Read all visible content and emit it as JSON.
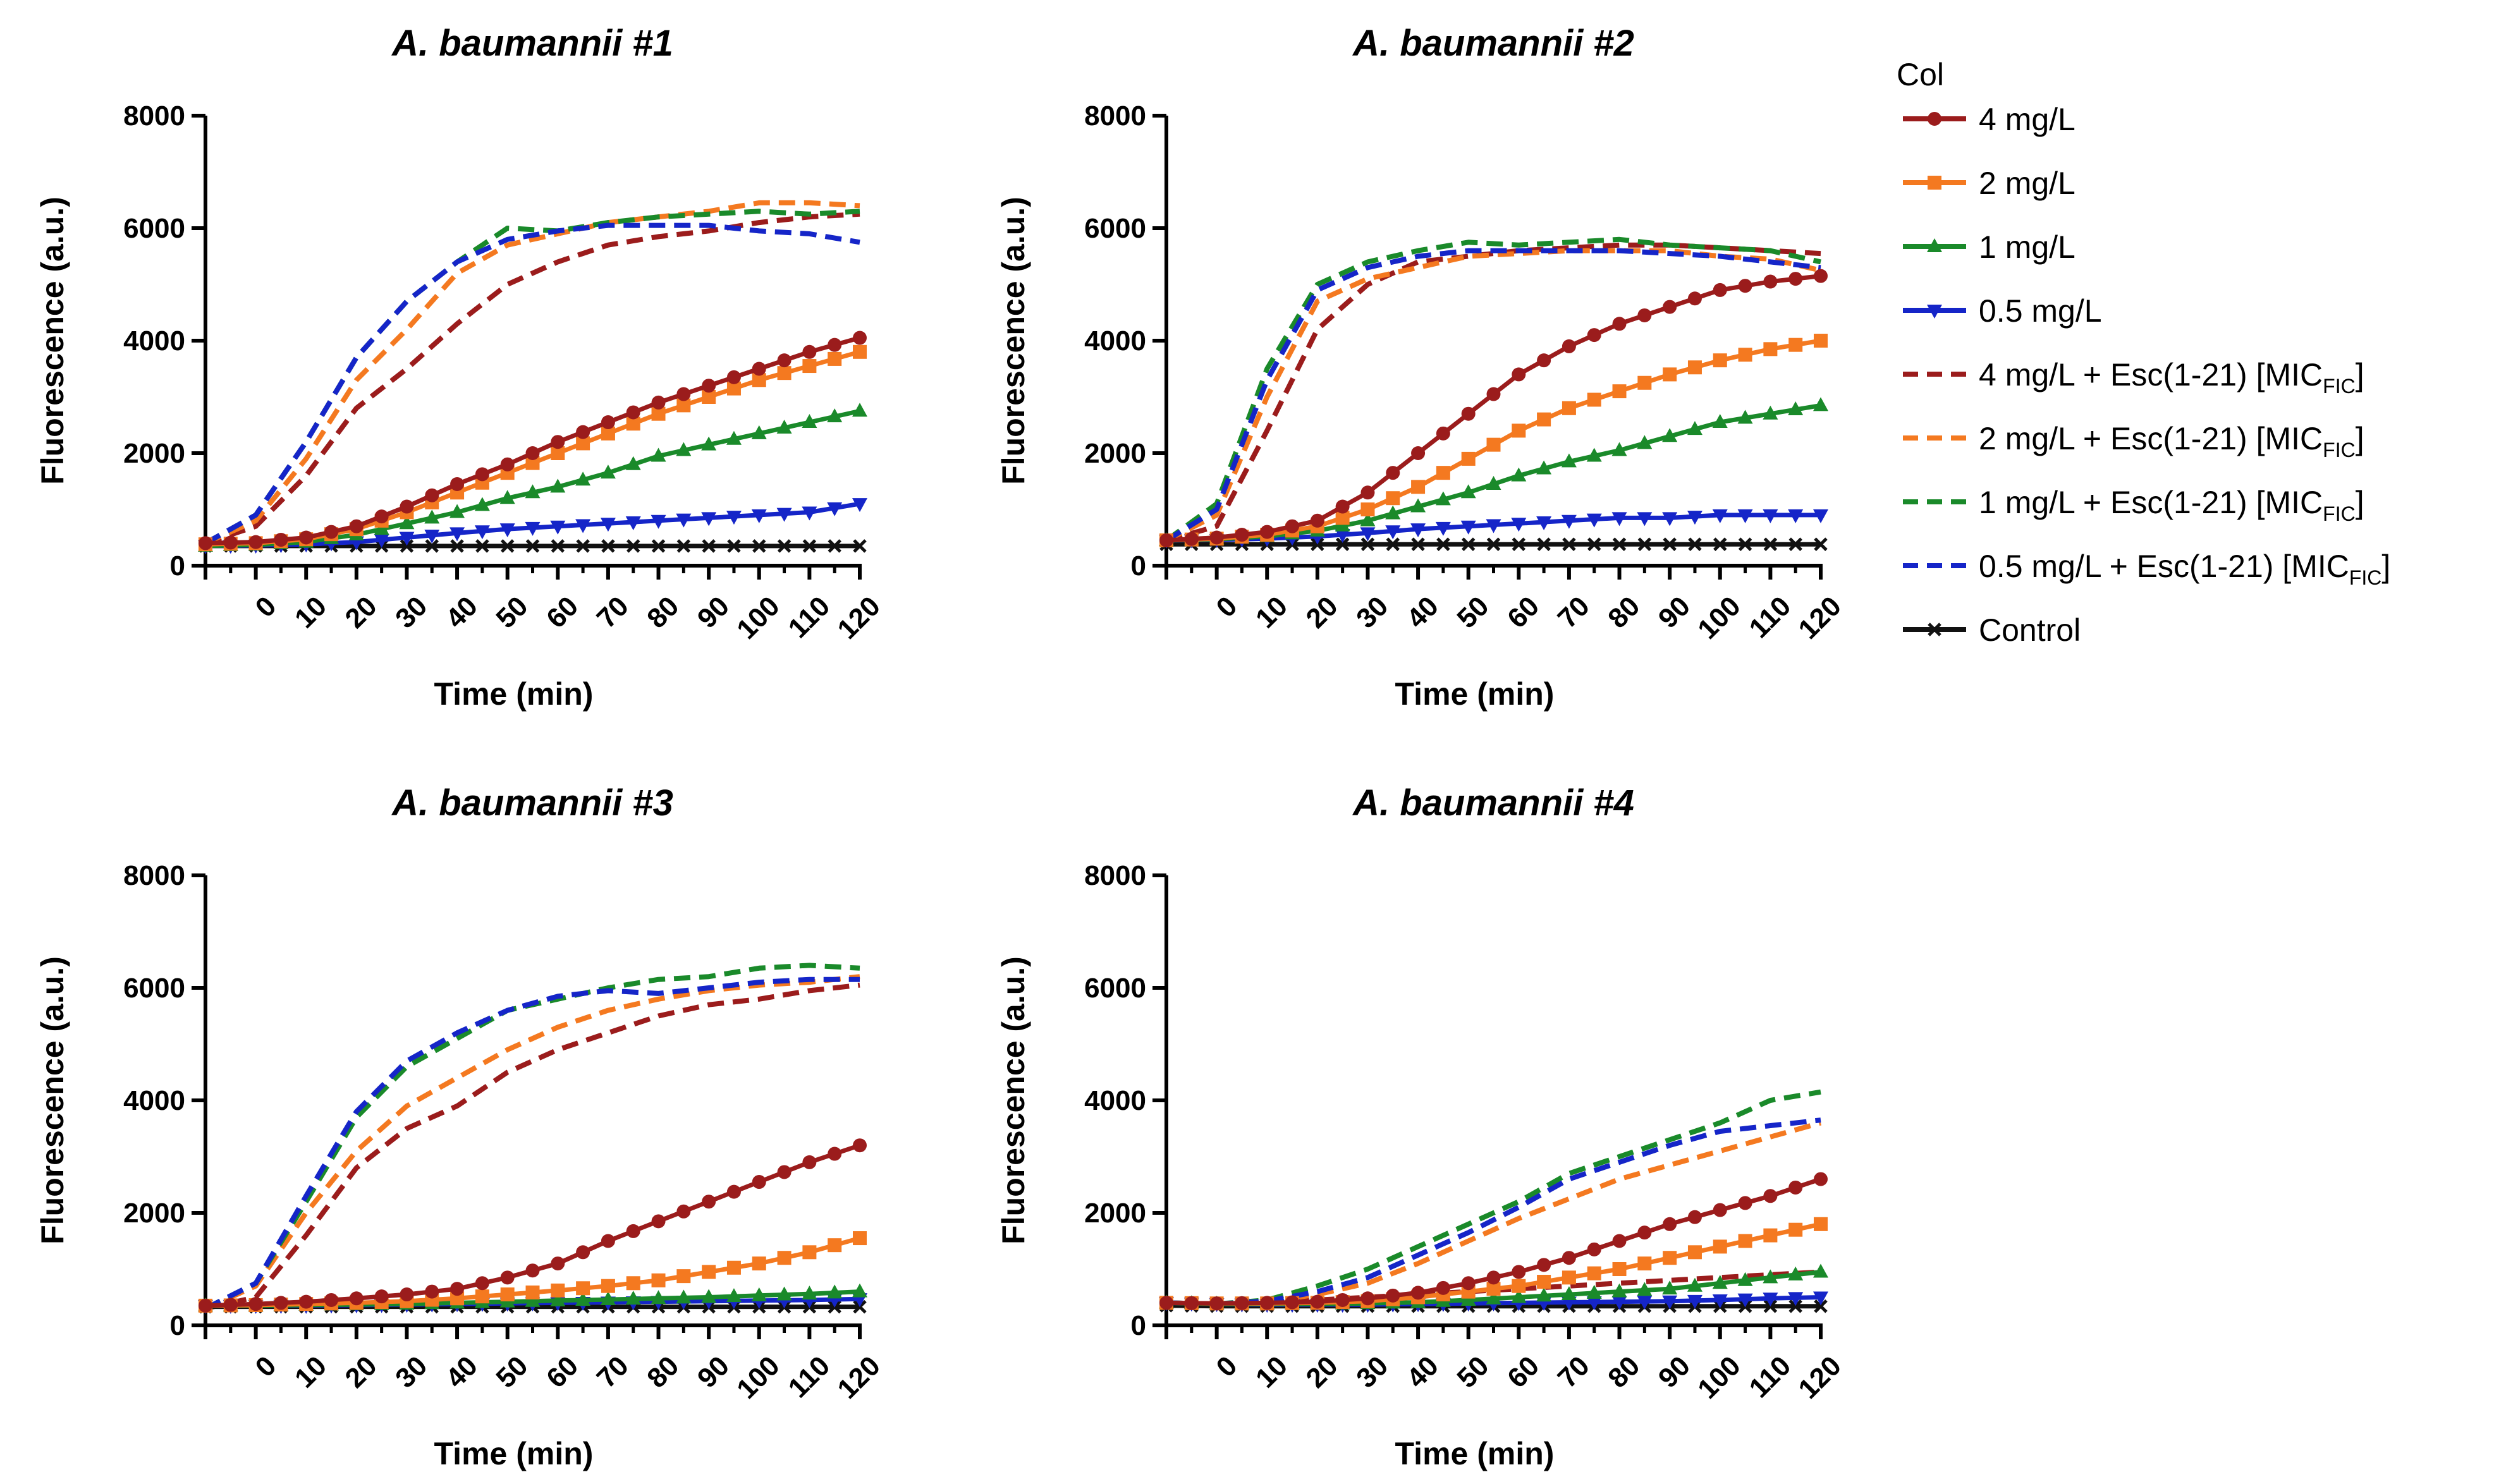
{
  "chart_data": [
    {
      "type": "line",
      "title": "A. baumannii #1",
      "xlabel": "Time (min)",
      "ylabel": "Fluorescence (a.u.)",
      "xlim": [
        -10,
        120
      ],
      "ylim": [
        0,
        8000
      ],
      "x_ticks": [
        "0",
        "10",
        "20",
        "30",
        "40",
        "50",
        "60",
        "70",
        "80",
        "90",
        "100",
        "110",
        "120"
      ],
      "y_ticks": [
        "0",
        "2000",
        "4000",
        "6000",
        "8000"
      ],
      "x": [
        -10,
        0,
        10,
        20,
        30,
        40,
        50,
        60,
        70,
        80,
        90,
        100,
        110,
        120
      ],
      "series": [
        {
          "name": "4 mg/L",
          "values": [
            400,
            420,
            500,
            700,
            1050,
            1450,
            1800,
            2200,
            2550,
            2900,
            3200,
            3500,
            3800,
            4050
          ]
        },
        {
          "name": "2 mg/L",
          "values": [
            380,
            400,
            470,
            650,
            950,
            1300,
            1650,
            2000,
            2350,
            2700,
            3000,
            3300,
            3550,
            3800
          ]
        },
        {
          "name": "1 mg/L",
          "values": [
            350,
            370,
            420,
            550,
            750,
            950,
            1200,
            1400,
            1650,
            1950,
            2150,
            2350,
            2550,
            2750
          ]
        },
        {
          "name": "0.5 mg/L",
          "values": [
            350,
            360,
            380,
            420,
            500,
            580,
            650,
            700,
            750,
            800,
            850,
            900,
            950,
            1100
          ]
        },
        {
          "name": "4 mg/L + Esc(1-21) [MICFIC]",
          "values": [
            400,
            700,
            1600,
            2800,
            3500,
            4300,
            5000,
            5400,
            5700,
            5850,
            5950,
            6100,
            6200,
            6250
          ]
        },
        {
          "name": "2 mg/L + Esc(1-21) [MICFIC]",
          "values": [
            400,
            800,
            1900,
            3300,
            4200,
            5200,
            5700,
            5900,
            6100,
            6200,
            6300,
            6450,
            6450,
            6400
          ]
        },
        {
          "name": "1 mg/L + Esc(1-21) [MICFIC]",
          "values": [
            400,
            900,
            2200,
            3700,
            4700,
            5400,
            6000,
            5950,
            6100,
            6200,
            6250,
            6300,
            6250,
            6300
          ]
        },
        {
          "name": "0.5 mg/L + Esc(1-21) [MICFIC]",
          "values": [
            400,
            900,
            2200,
            3700,
            4700,
            5400,
            5800,
            5950,
            6050,
            6050,
            6050,
            5950,
            5900,
            5750
          ]
        },
        {
          "name": "Control",
          "values": [
            350,
            350,
            350,
            350,
            350,
            350,
            350,
            350,
            350,
            350,
            350,
            350,
            350,
            350
          ]
        }
      ]
    },
    {
      "type": "line",
      "title": "A. baumannii #2",
      "xlabel": "Time (min)",
      "ylabel": "Fluorescence (a.u.)",
      "xlim": [
        -10,
        120
      ],
      "ylim": [
        0,
        8000
      ],
      "x_ticks": [
        "0",
        "10",
        "20",
        "30",
        "40",
        "50",
        "60",
        "70",
        "80",
        "90",
        "100",
        "110",
        "120"
      ],
      "y_ticks": [
        "0",
        "2000",
        "4000",
        "6000",
        "8000"
      ],
      "x": [
        -10,
        0,
        10,
        20,
        30,
        40,
        50,
        60,
        70,
        80,
        90,
        100,
        110,
        120
      ],
      "series": [
        {
          "name": "4 mg/L",
          "values": [
            450,
            500,
            600,
            800,
            1300,
            2000,
            2700,
            3400,
            3900,
            4300,
            4600,
            4900,
            5050,
            5150
          ]
        },
        {
          "name": "2 mg/L",
          "values": [
            450,
            480,
            550,
            700,
            1000,
            1400,
            1900,
            2400,
            2800,
            3100,
            3400,
            3650,
            3850,
            4000
          ]
        },
        {
          "name": "1 mg/L",
          "values": [
            450,
            470,
            520,
            620,
            800,
            1050,
            1300,
            1600,
            1850,
            2050,
            2300,
            2550,
            2700,
            2850
          ]
        },
        {
          "name": "0.5 mg/L",
          "values": [
            450,
            460,
            480,
            520,
            580,
            650,
            700,
            750,
            800,
            850,
            850,
            900,
            900,
            900
          ]
        },
        {
          "name": "4 mg/L + Esc(1-21) [MICFIC]",
          "values": [
            450,
            700,
            2400,
            4200,
            5000,
            5400,
            5500,
            5600,
            5650,
            5700,
            5700,
            5650,
            5600,
            5550
          ]
        },
        {
          "name": "2 mg/L + Esc(1-21) [MICFIC]",
          "values": [
            450,
            900,
            3000,
            4700,
            5100,
            5300,
            5500,
            5550,
            5600,
            5600,
            5600,
            5500,
            5450,
            5250
          ]
        },
        {
          "name": "1 mg/L + Esc(1-21) [MICFIC]",
          "values": [
            450,
            1100,
            3500,
            5000,
            5400,
            5600,
            5750,
            5700,
            5750,
            5800,
            5700,
            5650,
            5600,
            5400
          ]
        },
        {
          "name": "0.5 mg/L + Esc(1-21) [MICFIC]",
          "values": [
            450,
            1000,
            3300,
            4900,
            5300,
            5500,
            5600,
            5600,
            5600,
            5600,
            5550,
            5500,
            5400,
            5300
          ]
        },
        {
          "name": "Control",
          "values": [
            380,
            380,
            380,
            380,
            380,
            380,
            380,
            380,
            380,
            380,
            380,
            380,
            380,
            380
          ]
        }
      ]
    },
    {
      "type": "line",
      "title": "A. baumannii #3",
      "xlabel": "Time (min)",
      "ylabel": "Fluorescence (a.u.)",
      "xlim": [
        -10,
        120
      ],
      "ylim": [
        0,
        8000
      ],
      "x_ticks": [
        "0",
        "10",
        "20",
        "30",
        "40",
        "50",
        "60",
        "70",
        "80",
        "90",
        "100",
        "110",
        "120"
      ],
      "y_ticks": [
        "0",
        "2000",
        "4000",
        "6000",
        "8000"
      ],
      "x": [
        -10,
        0,
        10,
        20,
        30,
        40,
        50,
        60,
        70,
        80,
        90,
        100,
        110,
        120
      ],
      "series": [
        {
          "name": "4 mg/L",
          "values": [
            350,
            380,
            420,
            480,
            550,
            650,
            850,
            1100,
            1500,
            1850,
            2200,
            2550,
            2900,
            3200
          ]
        },
        {
          "name": "2 mg/L",
          "values": [
            350,
            360,
            380,
            400,
            430,
            480,
            550,
            620,
            700,
            800,
            950,
            1100,
            1300,
            1550
          ]
        },
        {
          "name": "1 mg/L",
          "values": [
            350,
            350,
            360,
            370,
            380,
            400,
            420,
            440,
            460,
            480,
            500,
            530,
            560,
            600
          ]
        },
        {
          "name": "0.5 mg/L",
          "values": [
            350,
            350,
            350,
            360,
            370,
            380,
            390,
            400,
            410,
            420,
            430,
            440,
            450,
            470
          ]
        },
        {
          "name": "4 mg/L + Esc(1-21) [MICFIC]",
          "values": [
            300,
            500,
            1600,
            2800,
            3500,
            3900,
            4500,
            4900,
            5200,
            5500,
            5700,
            5800,
            5950,
            6050
          ]
        },
        {
          "name": "2 mg/L + Esc(1-21) [MICFIC]",
          "values": [
            300,
            700,
            2000,
            3100,
            3900,
            4400,
            4900,
            5300,
            5600,
            5800,
            5950,
            6050,
            6100,
            6200
          ]
        },
        {
          "name": "1 mg/L + Esc(1-21) [MICFIC]",
          "values": [
            300,
            750,
            2200,
            3700,
            4600,
            5100,
            5600,
            5800,
            6000,
            6150,
            6200,
            6350,
            6400,
            6350
          ]
        },
        {
          "name": "0.5 mg/L + Esc(1-21) [MICFIC]",
          "values": [
            300,
            750,
            2300,
            3800,
            4700,
            5200,
            5600,
            5850,
            5950,
            5900,
            6000,
            6100,
            6150,
            6150
          ]
        },
        {
          "name": "Control",
          "values": [
            330,
            330,
            330,
            330,
            330,
            330,
            330,
            330,
            330,
            330,
            330,
            330,
            330,
            330
          ]
        }
      ]
    },
    {
      "type": "line",
      "title": "A. baumannii #4",
      "xlabel": "Time (min)",
      "ylabel": "Fluorescence (a.u.)",
      "xlim": [
        -10,
        120
      ],
      "ylim": [
        0,
        8000
      ],
      "x_ticks": [
        "0",
        "10",
        "20",
        "30",
        "40",
        "50",
        "60",
        "70",
        "80",
        "90",
        "100",
        "110",
        "120"
      ],
      "y_ticks": [
        "0",
        "2000",
        "4000",
        "6000",
        "8000"
      ],
      "x": [
        -10,
        0,
        10,
        20,
        30,
        40,
        50,
        60,
        70,
        80,
        90,
        100,
        110,
        120
      ],
      "series": [
        {
          "name": "4 mg/L",
          "values": [
            400,
            390,
            400,
            420,
            480,
            580,
            750,
            950,
            1200,
            1500,
            1800,
            2050,
            2300,
            2600
          ]
        },
        {
          "name": "2 mg/L",
          "values": [
            400,
            390,
            390,
            400,
            430,
            500,
            600,
            700,
            850,
            1000,
            1200,
            1400,
            1600,
            1800
          ]
        },
        {
          "name": "1 mg/L",
          "values": [
            400,
            380,
            380,
            380,
            390,
            410,
            450,
            500,
            550,
            600,
            650,
            750,
            850,
            950
          ]
        },
        {
          "name": "0.5 mg/L",
          "values": [
            400,
            380,
            370,
            370,
            370,
            380,
            390,
            400,
            410,
            420,
            430,
            450,
            480,
            500
          ]
        },
        {
          "name": "4 mg/L + Esc(1-21) [MICFIC]",
          "values": [
            400,
            380,
            400,
            450,
            500,
            550,
            600,
            650,
            700,
            750,
            800,
            850,
            900,
            950
          ]
        },
        {
          "name": "2 mg/L + Esc(1-21) [MICFIC]",
          "values": [
            400,
            380,
            420,
            550,
            750,
            1100,
            1500,
            1900,
            2250,
            2600,
            2850,
            3100,
            3350,
            3600
          ]
        },
        {
          "name": "1 mg/L + Esc(1-21) [MICFIC]",
          "values": [
            400,
            380,
            450,
            700,
            1000,
            1400,
            1800,
            2200,
            2700,
            3000,
            3300,
            3600,
            4000,
            4150
          ]
        },
        {
          "name": "0.5 mg/L + Esc(1-21) [MICFIC]",
          "values": [
            400,
            380,
            430,
            600,
            850,
            1250,
            1650,
            2100,
            2600,
            2900,
            3200,
            3450,
            3550,
            3650
          ]
        },
        {
          "name": "Control",
          "values": [
            350,
            340,
            340,
            340,
            340,
            340,
            340,
            340,
            340,
            340,
            340,
            340,
            340,
            340
          ]
        }
      ]
    }
  ],
  "legend": {
    "title": "Col",
    "placement": "right",
    "entries": [
      {
        "label": "4 mg/L",
        "sub": "",
        "tail": "",
        "color": "#9b1c1c",
        "style": "solid",
        "marker": "circle"
      },
      {
        "label": "2 mg/L",
        "sub": "",
        "tail": "",
        "color": "#f47920",
        "style": "solid",
        "marker": "square"
      },
      {
        "label": "1 mg/L",
        "sub": "",
        "tail": "",
        "color": "#1a8a2a",
        "style": "solid",
        "marker": "triangle-up"
      },
      {
        "label": "0.5 mg/L",
        "sub": "",
        "tail": "",
        "color": "#1525c8",
        "style": "solid",
        "marker": "triangle-down"
      },
      {
        "label": "4 mg/L + Esc(1-21) [MIC",
        "sub": "FIC",
        "tail": "]",
        "color": "#9b1c1c",
        "style": "dashed",
        "marker": "none"
      },
      {
        "label": "2 mg/L + Esc(1-21) [MIC",
        "sub": "FIC",
        "tail": "]",
        "color": "#f47920",
        "style": "dashed",
        "marker": "none"
      },
      {
        "label": "1 mg/L + Esc(1-21) [MIC",
        "sub": "FIC",
        "tail": "]",
        "color": "#1a8a2a",
        "style": "dashed",
        "marker": "none"
      },
      {
        "label": "0.5 mg/L + Esc(1-21) [MIC",
        "sub": "FIC",
        "tail": "]",
        "color": "#1525c8",
        "style": "dashed",
        "marker": "none"
      },
      {
        "label": "Control",
        "sub": "",
        "tail": "",
        "color": "#111111",
        "style": "solid",
        "marker": "x"
      }
    ]
  }
}
